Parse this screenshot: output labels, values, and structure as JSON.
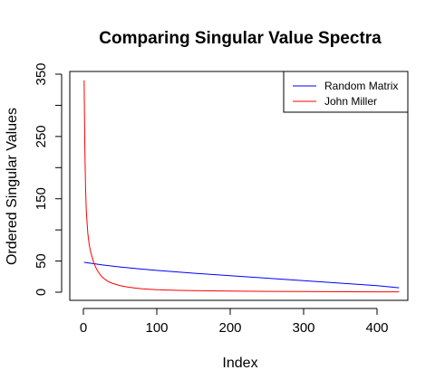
{
  "chart_data": {
    "type": "line",
    "title": "Comparing Singular Value Spectra",
    "xlabel": "Index",
    "ylabel": "Ordered Singular Values",
    "xlim": [
      0,
      430
    ],
    "ylim": [
      0,
      350
    ],
    "xticks": [
      0,
      100,
      200,
      300,
      400
    ],
    "yticks": [
      0,
      50,
      150,
      250,
      350
    ],
    "grid": false,
    "legend_position": "top-right",
    "series": [
      {
        "name": "Random Matrix",
        "color": "#0000ff",
        "x": [
          1,
          10,
          25,
          50,
          75,
          100,
          150,
          200,
          250,
          300,
          350,
          400,
          430
        ],
        "y": [
          48,
          46.5,
          44,
          40.5,
          37.5,
          35,
          30.5,
          26.5,
          22.5,
          18.5,
          14.5,
          10.5,
          7
        ]
      },
      {
        "name": "John Miller",
        "color": "#ff0000",
        "x": [
          1,
          2,
          3,
          4,
          5,
          6,
          7,
          8,
          10,
          12,
          14,
          16,
          18,
          20,
          25,
          30,
          35,
          40,
          50,
          60,
          70,
          80,
          100,
          125,
          150,
          200,
          250,
          300,
          350,
          400,
          430
        ],
        "y": [
          340,
          230,
          165,
          130,
          112,
          95,
          85,
          76,
          64,
          56,
          48,
          42,
          37,
          33,
          25,
          20,
          16.5,
          14,
          10.5,
          8.3,
          6.8,
          5.5,
          4,
          3,
          2.5,
          1.8,
          1.3,
          1,
          0.8,
          0.6,
          0.5
        ]
      }
    ]
  }
}
